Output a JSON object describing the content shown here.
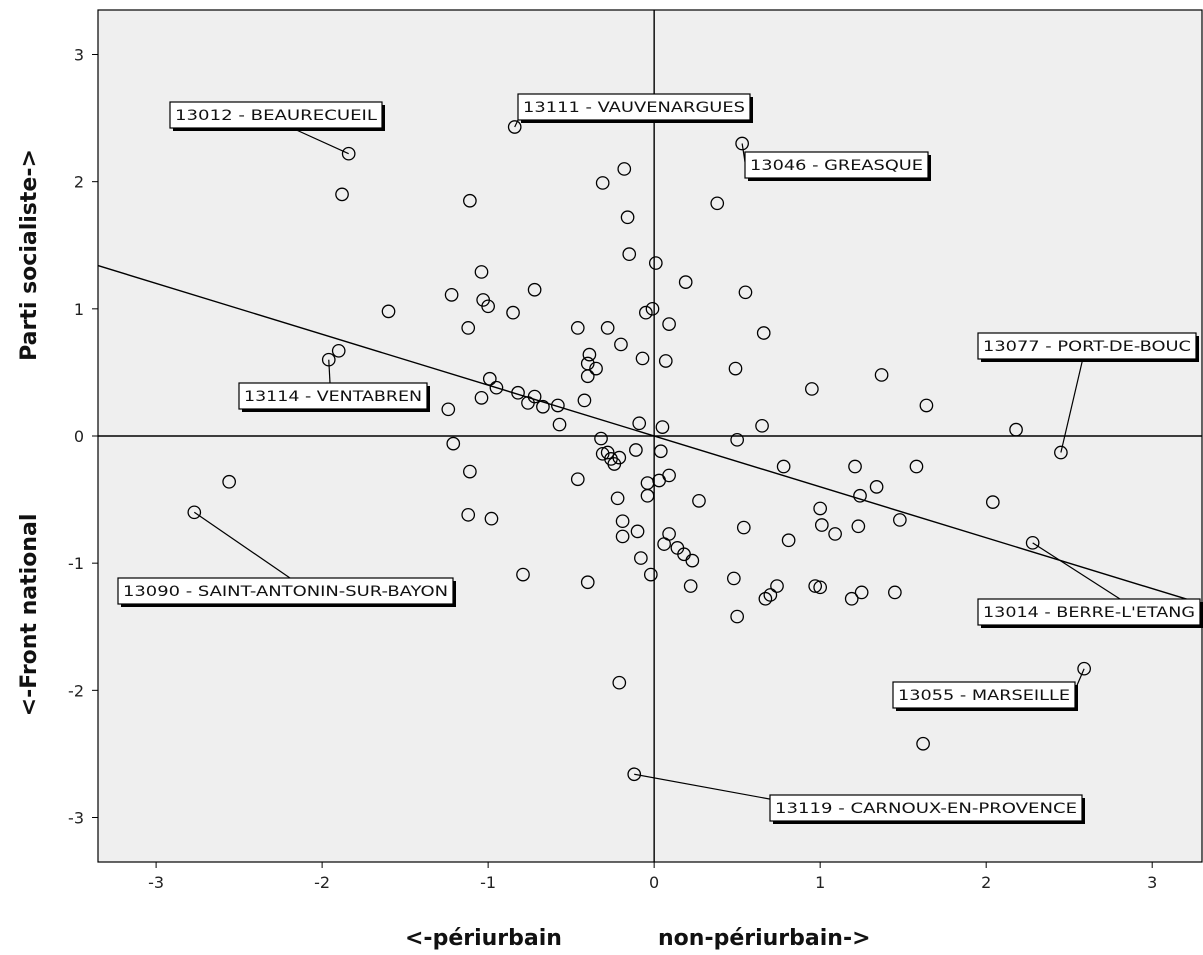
{
  "chart_data": {
    "type": "scatter",
    "xlabel_left": "<-périurbain",
    "xlabel_right": "non-périurbain->",
    "ylabel_bottom": "<-Front national",
    "ylabel_top": "Parti socialiste->",
    "xlim": [
      -3.35,
      3.3
    ],
    "ylim": [
      -3.35,
      3.35
    ],
    "x_ticks": [
      -3,
      -2,
      -1,
      0,
      1,
      2,
      3
    ],
    "y_ticks": [
      -3,
      -2,
      -1,
      0,
      1,
      2,
      3
    ],
    "reference_lines": {
      "x": 0,
      "y": 0
    },
    "fit_line": {
      "x": [
        -3.35,
        3.3
      ],
      "y": [
        1.34,
        -1.32
      ]
    },
    "colors": {
      "plot_bg": "#efefef",
      "marker": "#000000",
      "page_bg": "#ffffff"
    },
    "points": [
      [
        -1.84,
        2.22
      ],
      [
        -1.88,
        1.9
      ],
      [
        -0.84,
        2.43
      ],
      [
        0.53,
        2.3
      ],
      [
        -0.18,
        2.1
      ],
      [
        -0.31,
        1.99
      ],
      [
        -1.11,
        1.85
      ],
      [
        -0.16,
        1.72
      ],
      [
        0.38,
        1.83
      ],
      [
        -0.15,
        1.43
      ],
      [
        0.01,
        1.36
      ],
      [
        0.19,
        1.21
      ],
      [
        -1.04,
        1.29
      ],
      [
        -0.72,
        1.15
      ],
      [
        0.55,
        1.13
      ],
      [
        -1.22,
        1.11
      ],
      [
        -1.03,
        1.07
      ],
      [
        -1.0,
        1.02
      ],
      [
        -0.85,
        0.97
      ],
      [
        -1.6,
        0.98
      ],
      [
        -0.01,
        1.0
      ],
      [
        -0.05,
        0.97
      ],
      [
        0.09,
        0.88
      ],
      [
        -1.12,
        0.85
      ],
      [
        -0.46,
        0.85
      ],
      [
        -0.28,
        0.85
      ],
      [
        0.66,
        0.81
      ],
      [
        -0.2,
        0.72
      ],
      [
        -1.9,
        0.67
      ],
      [
        -1.96,
        0.6
      ],
      [
        -0.39,
        0.64
      ],
      [
        -0.4,
        0.57
      ],
      [
        -0.07,
        0.61
      ],
      [
        0.07,
        0.59
      ],
      [
        -0.35,
        0.53
      ],
      [
        0.49,
        0.53
      ],
      [
        -0.4,
        0.47
      ],
      [
        -0.99,
        0.45
      ],
      [
        -0.95,
        0.38
      ],
      [
        -0.82,
        0.34
      ],
      [
        -0.72,
        0.31
      ],
      [
        -0.76,
        0.26
      ],
      [
        -0.67,
        0.23
      ],
      [
        -1.04,
        0.3
      ],
      [
        -0.42,
        0.28
      ],
      [
        -0.58,
        0.24
      ],
      [
        -1.24,
        0.21
      ],
      [
        -0.57,
        0.09
      ],
      [
        -0.09,
        0.1
      ],
      [
        0.05,
        0.07
      ],
      [
        0.65,
        0.08
      ],
      [
        0.95,
        0.37
      ],
      [
        1.37,
        0.48
      ],
      [
        1.64,
        0.24
      ],
      [
        2.18,
        0.05
      ],
      [
        2.45,
        -0.13
      ],
      [
        -1.21,
        -0.06
      ],
      [
        -0.32,
        -0.02
      ],
      [
        -0.31,
        -0.14
      ],
      [
        -0.28,
        -0.13
      ],
      [
        -0.11,
        -0.11
      ],
      [
        0.04,
        -0.12
      ],
      [
        -0.21,
        -0.17
      ],
      [
        -0.26,
        -0.18
      ],
      [
        -0.24,
        -0.22
      ],
      [
        0.5,
        -0.03
      ],
      [
        0.78,
        -0.24
      ],
      [
        1.21,
        -0.24
      ],
      [
        1.58,
        -0.24
      ],
      [
        -1.11,
        -0.28
      ],
      [
        0.09,
        -0.31
      ],
      [
        0.03,
        -0.35
      ],
      [
        -0.04,
        -0.37
      ],
      [
        -0.46,
        -0.34
      ],
      [
        1.34,
        -0.4
      ],
      [
        -0.04,
        -0.47
      ],
      [
        1.24,
        -0.47
      ],
      [
        -0.22,
        -0.49
      ],
      [
        0.27,
        -0.51
      ],
      [
        2.04,
        -0.52
      ],
      [
        1.0,
        -0.57
      ],
      [
        -1.12,
        -0.62
      ],
      [
        -0.98,
        -0.65
      ],
      [
        1.48,
        -0.66
      ],
      [
        -0.19,
        -0.67
      ],
      [
        0.54,
        -0.72
      ],
      [
        1.01,
        -0.7
      ],
      [
        1.23,
        -0.71
      ],
      [
        -0.1,
        -0.75
      ],
      [
        0.09,
        -0.77
      ],
      [
        1.09,
        -0.77
      ],
      [
        -0.19,
        -0.79
      ],
      [
        0.81,
        -0.82
      ],
      [
        2.28,
        -0.84
      ],
      [
        0.06,
        -0.85
      ],
      [
        0.14,
        -0.88
      ],
      [
        0.18,
        -0.93
      ],
      [
        -0.08,
        -0.96
      ],
      [
        0.23,
        -0.98
      ],
      [
        -0.02,
        -1.09
      ],
      [
        -0.79,
        -1.09
      ],
      [
        -0.4,
        -1.15
      ],
      [
        0.48,
        -1.12
      ],
      [
        0.22,
        -1.18
      ],
      [
        0.74,
        -1.18
      ],
      [
        0.97,
        -1.18
      ],
      [
        1.0,
        -1.19
      ],
      [
        0.7,
        -1.25
      ],
      [
        0.67,
        -1.28
      ],
      [
        1.25,
        -1.23
      ],
      [
        1.19,
        -1.28
      ],
      [
        1.45,
        -1.23
      ],
      [
        0.5,
        -1.42
      ],
      [
        -2.56,
        -0.36
      ],
      [
        -2.77,
        -0.6
      ],
      [
        -0.21,
        -1.94
      ],
      [
        2.59,
        -1.83
      ],
      [
        1.62,
        -2.42
      ],
      [
        -0.12,
        -2.66
      ]
    ],
    "annotations": [
      {
        "text": "13012 - BEAURECUEIL",
        "x": -1.84,
        "y": 2.22
      },
      {
        "text": "13111 - VAUVENARGUES",
        "x": -0.84,
        "y": 2.43
      },
      {
        "text": "13046 - GREASQUE",
        "x": 0.53,
        "y": 2.3
      },
      {
        "text": "13077 - PORT-DE-BOUC",
        "x": 2.45,
        "y": -0.13
      },
      {
        "text": "13114 - VENTABREN",
        "x": -1.96,
        "y": 0.6
      },
      {
        "text": "13090 - SAINT-ANTONIN-SUR-BAYON",
        "x": -2.77,
        "y": -0.6
      },
      {
        "text": "13014 - BERRE-L'ETANG",
        "x": 2.28,
        "y": -0.84
      },
      {
        "text": "13055 - MARSEILLE",
        "x": 2.59,
        "y": -1.83
      },
      {
        "text": "13119 - CARNOUX-EN-PROVENCE",
        "x": -0.12,
        "y": -2.66
      }
    ]
  }
}
